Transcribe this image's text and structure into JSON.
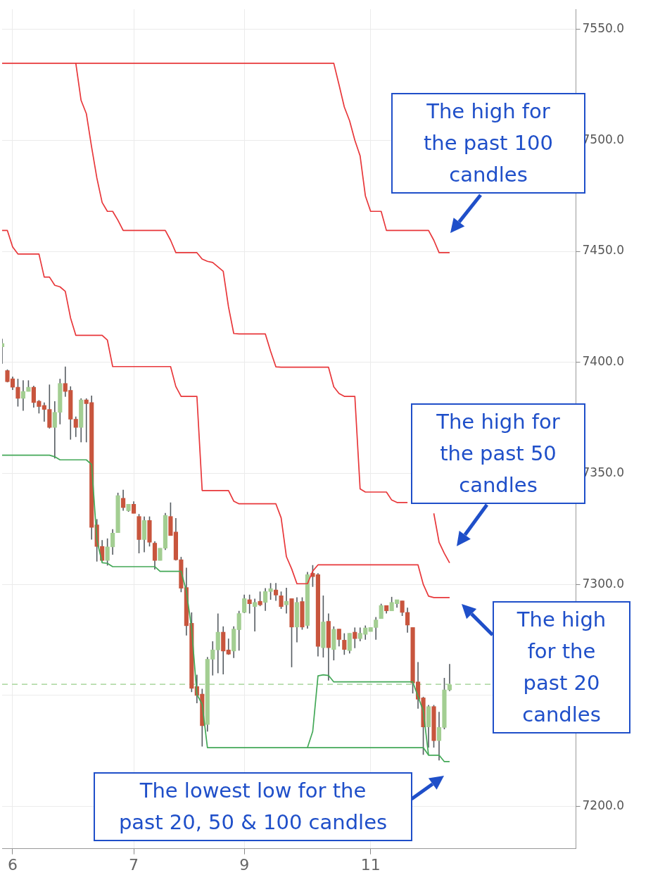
{
  "chart_data": {
    "type": "candlestick",
    "categories": [
      null,
      null,
      "6",
      null,
      null,
      null,
      null,
      null,
      null,
      null,
      null,
      null,
      null,
      null,
      null,
      null,
      null,
      null,
      null,
      null,
      null,
      null,
      null,
      null,
      null,
      "7",
      null,
      null,
      null,
      null,
      null,
      null,
      null,
      null,
      null,
      null,
      null,
      null,
      null,
      null,
      null,
      null,
      null,
      null,
      null,
      null,
      "9",
      null,
      null,
      null,
      null,
      null,
      null,
      null,
      null,
      null,
      null,
      null,
      null,
      null,
      null,
      null,
      null,
      null,
      null,
      null,
      null,
      null,
      null,
      null,
      "11",
      null,
      null,
      null,
      null,
      null,
      null,
      null,
      null,
      null,
      null,
      null,
      null,
      null,
      null,
      null,
      null,
      null,
      null,
      null,
      null,
      null,
      null,
      null,
      null,
      null,
      null,
      null,
      null,
      null,
      null,
      null,
      null,
      null,
      null,
      null,
      null,
      null,
      null,
      null
    ],
    "ohlc": [
      [
        7407.0,
        7410.6,
        7399.4,
        7408.5
      ],
      [
        7396.3,
        7396.8,
        7391.0,
        7391.3
      ],
      [
        7392.6,
        7393.6,
        7387.6,
        7388.8
      ],
      [
        7388.8,
        7392.6,
        7380.1,
        7383.8
      ],
      [
        7383.8,
        7391.9,
        7378.2,
        7386.9
      ],
      [
        7386.9,
        7391.9,
        7386.9,
        7388.8
      ],
      [
        7388.8,
        7389.5,
        7379.6,
        7381.9
      ],
      [
        7382.5,
        7383.0,
        7377.0,
        7380.1
      ],
      [
        7380.6,
        7381.9,
        7373.3,
        7378.8
      ],
      [
        7378.8,
        7390.0,
        7370.2,
        7370.7
      ],
      [
        7370.7,
        7382.5,
        7356.7,
        7377.5
      ],
      [
        7377.5,
        7392.6,
        7372.1,
        7390.5
      ],
      [
        7390.5,
        7398.1,
        7384.5,
        7386.9
      ],
      [
        7387.4,
        7389.2,
        7365.2,
        7374.4
      ],
      [
        7374.4,
        7375.6,
        7366.4,
        7370.7
      ],
      [
        7370.7,
        7383.8,
        7364.0,
        7383.1
      ],
      [
        7383.1,
        7383.8,
        7364.0,
        7381.4
      ],
      [
        7381.9,
        7385.0,
        7320.2,
        7325.7
      ],
      [
        7326.8,
        7329.4,
        7310.3,
        7317.1
      ],
      [
        7317.1,
        7320.0,
        7310.3,
        7310.8
      ],
      [
        7310.8,
        7320.7,
        7308.5,
        7316.9
      ],
      [
        7316.9,
        7324.9,
        7313.4,
        7323.1
      ],
      [
        7323.3,
        7341.3,
        7323.3,
        7340.0
      ],
      [
        7338.8,
        7342.6,
        7333.2,
        7334.6
      ],
      [
        7333.2,
        7336.1,
        7332.7,
        7336.1
      ],
      [
        7336.1,
        7337.4,
        7332.0,
        7332.0
      ],
      [
        7330.6,
        7331.7,
        7314.0,
        7320.2
      ],
      [
        7320.2,
        7330.6,
        7314.5,
        7328.8
      ],
      [
        7328.8,
        7330.6,
        7317.1,
        7319.0
      ],
      [
        7318.6,
        7319.4,
        7306.7,
        7310.8
      ],
      [
        7310.8,
        7316.3,
        7310.8,
        7316.3
      ],
      [
        7316.3,
        7332.2,
        7315.5,
        7331.1
      ],
      [
        7330.6,
        7336.9,
        7322.0,
        7322.0
      ],
      [
        7323.6,
        7329.9,
        7310.8,
        7311.1
      ],
      [
        7311.1,
        7312.4,
        7296.5,
        7298.3
      ],
      [
        7298.6,
        7307.5,
        7277.0,
        7281.4
      ],
      [
        7282.5,
        7287.4,
        7251.5,
        7253.2
      ],
      [
        7254.0,
        7259.3,
        7246.5,
        7250.0
      ],
      [
        7250.6,
        7253.0,
        7227.0,
        7236.4
      ],
      [
        7236.9,
        7267.3,
        7233.7,
        7266.3
      ],
      [
        7266.3,
        7274.4,
        7259.0,
        7270.5
      ],
      [
        7270.5,
        7286.9,
        7260.0,
        7278.5
      ],
      [
        7278.5,
        7281.1,
        7259.5,
        7270.0
      ],
      [
        7270.5,
        7275.6,
        7268.3,
        7268.6
      ],
      [
        7270.0,
        7281.1,
        7266.9,
        7279.9
      ],
      [
        7279.6,
        7288.1,
        7270.2,
        7286.9
      ],
      [
        7287.4,
        7295.4,
        7287.1,
        7293.6
      ],
      [
        7293.1,
        7295.4,
        7286.9,
        7291.3
      ],
      [
        7290.0,
        7293.6,
        7278.8,
        7291.9
      ],
      [
        7292.4,
        7296.8,
        7290.2,
        7290.8
      ],
      [
        7291.9,
        7298.3,
        7288.1,
        7296.8
      ],
      [
        7296.8,
        7300.6,
        7293.1,
        7298.1
      ],
      [
        7297.5,
        7300.6,
        7292.6,
        7295.2
      ],
      [
        7294.9,
        7296.8,
        7289.0,
        7290.0
      ],
      [
        7290.8,
        7298.5,
        7286.9,
        7292.4
      ],
      [
        7293.6,
        7293.6,
        7262.7,
        7280.8
      ],
      [
        7280.8,
        7294.2,
        7273.9,
        7291.9
      ],
      [
        7292.3,
        7294.2,
        7279.6,
        7280.8
      ],
      [
        7281.5,
        7305.6,
        7280.1,
        7304.4
      ],
      [
        7305.0,
        7308.7,
        7298.9,
        7303.5
      ],
      [
        7304.4,
        7305.1,
        7267.6,
        7272.1
      ],
      [
        7271.5,
        7295.0,
        7267.1,
        7283.1
      ],
      [
        7283.4,
        7286.9,
        7256.7,
        7271.5
      ],
      [
        7270.7,
        7281.1,
        7265.8,
        7279.8
      ],
      [
        7279.9,
        7279.9,
        7272.1,
        7275.2
      ],
      [
        7274.9,
        7278.0,
        7268.3,
        7270.7
      ],
      [
        7270.2,
        7278.0,
        7268.9,
        7278.0
      ],
      [
        7278.5,
        7280.6,
        7271.3,
        7275.6
      ],
      [
        7275.6,
        7280.6,
        7274.4,
        7278.0
      ],
      [
        7277.5,
        7281.5,
        7275.1,
        7280.4
      ],
      [
        7278.8,
        7280.6,
        7278.8,
        7280.6
      ],
      [
        7280.6,
        7285.3,
        7275.1,
        7284.0
      ],
      [
        7284.6,
        7291.3,
        7284.6,
        7290.5
      ],
      [
        7290.5,
        7290.5,
        7286.9,
        7288.1
      ],
      [
        7288.1,
        7294.4,
        7288.1,
        7291.9
      ],
      [
        7291.3,
        7293.1,
        7289.5,
        7293.1
      ],
      [
        7292.6,
        7292.6,
        7285.8,
        7287.4
      ],
      [
        7287.4,
        7289.5,
        7278.3,
        7281.7
      ],
      [
        7280.6,
        7280.6,
        7250.9,
        7255.6
      ],
      [
        7256.1,
        7265.0,
        7244.0,
        7248.3
      ],
      [
        7248.9,
        7249.4,
        7223.3,
        7235.8
      ],
      [
        7235.8,
        7245.7,
        7226.5,
        7245.0
      ],
      [
        7245.0,
        7245.7,
        7226.5,
        7229.6
      ],
      [
        7229.6,
        7242.6,
        7220.7,
        7235.6
      ],
      [
        7235.6,
        7257.9,
        7234.8,
        7252.5
      ],
      [
        7252.5,
        7264.2,
        7252.0,
        7254.8
      ],
      null,
      null,
      null,
      null,
      null,
      null,
      null,
      null,
      null,
      null,
      null,
      null,
      null,
      null,
      null,
      null,
      null,
      null,
      null,
      null,
      null,
      null,
      null,
      null
    ],
    "colors": [
      "#a3ce92",
      "#c8553d",
      "#c8553d",
      "#c8553d",
      "#a3ce92",
      "#a3ce92",
      "#c8553d",
      "#c8553d",
      "#c8553d",
      "#c8553d",
      "#a3ce92",
      "#a3ce92",
      "#c8553d",
      "#c8553d",
      "#c8553d",
      "#a3ce92",
      "#c8553d",
      "#c8553d",
      "#c8553d",
      "#c8553d",
      "#a3ce92",
      "#a3ce92",
      "#a3ce92",
      "#c8553d",
      "#a3ce92",
      "#c8553d",
      "#c8553d",
      "#a3ce92",
      "#c8553d",
      "#c8553d",
      "#a3ce92",
      "#a3ce92",
      "#c8553d",
      "#c8553d",
      "#c8553d",
      "#c8553d",
      "#c8553d",
      "#c8553d",
      "#c8553d",
      "#a3ce92",
      "#a3ce92",
      "#a3ce92",
      "#c8553d",
      "#c8553d",
      "#a3ce92",
      "#a3ce92",
      "#a3ce92",
      "#c8553d",
      "#a3ce92",
      "#c8553d",
      "#a3ce92",
      "#a3ce92",
      "#c8553d",
      "#c8553d",
      "#a3ce92",
      "#c8553d",
      "#a3ce92",
      "#c8553d",
      "#a3ce92",
      "#c8553d",
      "#c8553d",
      "#a3ce92",
      "#c8553d",
      "#a3ce92",
      "#c8553d",
      "#c8553d",
      "#a3ce92",
      "#c8553d",
      "#a3ce92",
      "#a3ce92",
      "#a3ce92",
      "#a3ce92",
      "#a3ce92",
      "#c8553d",
      "#a3ce92",
      "#a3ce92",
      "#c8553d",
      "#c8553d",
      "#c8553d",
      "#c8553d",
      "#c8553d",
      "#a3ce92",
      "#c8553d",
      "#a3ce92",
      "#a3ce92",
      "#a3ce92",
      null,
      null,
      null,
      null,
      null,
      null,
      null,
      null,
      null,
      null,
      null,
      null,
      null,
      null,
      null,
      null,
      null,
      null,
      null,
      null,
      null,
      null,
      null,
      null
    ],
    "series": [
      {
        "type": "line",
        "color": "#e8373a",
        "values": [
          7534.7,
          7534.7,
          7534.7,
          7534.7,
          7534.7,
          7534.7,
          7534.7,
          7534.7,
          7534.7,
          7534.7,
          7534.7,
          7534.7,
          7534.7,
          7534.7,
          7534.7,
          7534.7,
          7534.7,
          7534.7,
          7534.7,
          7534.7,
          7534.7,
          7534.7,
          7534.7,
          7534.7,
          7534.7,
          7534.7,
          7534.7,
          7534.7,
          7534.7,
          7534.7,
          7534.7,
          7534.7,
          7534.7,
          7534.7,
          7534.7,
          7534.7,
          7534.7,
          7534.7,
          7534.7,
          7534.7,
          7534.7,
          7534.7,
          7534.7,
          7534.7,
          7534.7,
          7534.7,
          7534.7,
          7534.7,
          7534.7,
          7534.7,
          7534.7,
          7534.7,
          7534.7,
          7534.7,
          7534.7,
          7534.7,
          7534.7,
          7534.7,
          7534.7,
          7534.7,
          7534.7,
          7534.7,
          7534.7,
          7534.7,
          7525,
          7515,
          7508.8,
          7500,
          7493,
          7475,
          7468,
          7468,
          7468,
          7459.4,
          7459.4,
          7459.4,
          7459.4,
          7459.4,
          7459.4,
          7459.4,
          7459.4,
          7459.4,
          7455,
          7449.4,
          7449.4,
          7449.4,
          null,
          null,
          null,
          null,
          null,
          null,
          null,
          null,
          null,
          null,
          null,
          null,
          null,
          null,
          null,
          null,
          null,
          null,
          null,
          null,
          null,
          null,
          null,
          null
        ]
      },
      {
        "type": "line",
        "color": "#e8373a",
        "values": [
          null,
          null,
          null,
          null,
          null,
          null,
          null,
          null,
          null,
          null,
          null,
          null,
          null,
          null,
          7534.7,
          7518,
          7512,
          7497,
          7483,
          7472,
          7468,
          7468,
          7464,
          7459.4,
          7459.4,
          7459.4,
          7459.4,
          7459.4,
          7459.4,
          7459.4,
          7459.4,
          7459.4,
          7455,
          7449.4,
          7449.4,
          7449.4,
          7449.4,
          7449.4,
          7446.5,
          7445.5,
          7445,
          7443,
          7441,
          7425,
          7413,
          7412.8,
          7412.8,
          7412.8,
          7412.8,
          7412.8,
          7412.8,
          7405,
          7398,
          7397.8,
          7397.8,
          7397.8,
          7397.8,
          7397.8,
          7397.8,
          7397.8,
          7397.8,
          7397.8,
          7397.8,
          7389,
          7386,
          7384.7,
          7384.7,
          7384.7,
          7343,
          7341.6,
          7341.6,
          7341.6,
          7341.6,
          7341.6,
          7338,
          7336.9,
          7336.9,
          7336.9,
          null,
          null,
          null,
          null,
          7332,
          7319,
          7314,
          7309.7,
          null,
          null,
          null,
          null,
          null,
          null,
          null,
          null,
          null,
          null,
          null,
          null,
          null,
          null,
          null,
          null,
          null,
          null,
          null,
          null,
          null,
          null,
          null,
          null
        ]
      },
      {
        "type": "line",
        "color": "#e8373a",
        "values": [
          7459.4,
          7459.4,
          7452,
          7448.8,
          7448.8,
          7448.8,
          7448.8,
          7448.8,
          7438.4,
          7438.4,
          7434.7,
          7434,
          7432,
          7420,
          7412.2,
          7412.2,
          7412.2,
          7412.2,
          7412.2,
          7412.2,
          7410,
          7398.1,
          7398.1,
          7398.1,
          7398.1,
          7398.1,
          7398.1,
          7398.1,
          7398.1,
          7398.1,
          7398.1,
          7398.1,
          7398.1,
          7389.1,
          7384.7,
          7384.7,
          7384.7,
          7384.7,
          7342.3,
          7342.3,
          7342.3,
          7342.3,
          7342.3,
          7342.3,
          7337.5,
          7336.3,
          7336.3,
          7336.3,
          7336.3,
          7336.3,
          7336.3,
          7336.3,
          7336.3,
          7330,
          7312.5,
          7307,
          7300.3,
          7300.3,
          7300.3,
          7306,
          7308.8,
          7308.8,
          7308.8,
          7308.8,
          7308.8,
          7308.8,
          7308.8,
          7308.8,
          7308.8,
          7308.8,
          7308.8,
          7308.8,
          7308.8,
          7308.8,
          7308.8,
          7308.8,
          7308.8,
          7308.8,
          7308.8,
          7308.8,
          7300,
          7294.7,
          7294.1,
          7294.1,
          7294.1,
          7294.1,
          null,
          null,
          null,
          null,
          null,
          null,
          null,
          null,
          null,
          null,
          null,
          null,
          null,
          null,
          null,
          null,
          null,
          null,
          null,
          null,
          null,
          null,
          null,
          null
        ]
      },
      {
        "type": "line",
        "color": "#43a857",
        "values": [
          7358.2,
          7358.2,
          7358.2,
          7358.2,
          7358.2,
          7358.2,
          7358.2,
          7358.2,
          7358.2,
          7358.2,
          7357.5,
          7356.1,
          7356.1,
          7356.1,
          7356.1,
          7356.1,
          7356.1,
          7354,
          7320,
          7309.8,
          7309.5,
          7308,
          7308,
          7308,
          7308,
          7308,
          7308,
          7308,
          7308,
          7308,
          7305.9,
          7305.9,
          7305.9,
          7305.9,
          7305.9,
          7297,
          7280,
          7250.5,
          7246,
          7226.5,
          7226.5,
          7226.5,
          7226.5,
          7226.5,
          7226.5,
          7226.5,
          7226.5,
          7226.5,
          7226.5,
          7226.5,
          7226.5,
          7226.5,
          7226.5,
          7226.5,
          7226.5,
          7226.5,
          7226.5,
          7226.5,
          7226.5,
          7233.8,
          7258.8,
          7259.3,
          7259,
          7256.1,
          7256.1,
          7256.1,
          7256.1,
          7256.1,
          7256.1,
          7256.1,
          7256.1,
          7256.1,
          7256.1,
          7256.1,
          7256.1,
          7256.1,
          7256.1,
          7256.1,
          7256.1,
          7249.5,
          7243,
          7223.1,
          7223.1,
          7223.1,
          7220.2,
          7220.2,
          null,
          null,
          null,
          null,
          null,
          null,
          null,
          null,
          null,
          null,
          null,
          null,
          null,
          null,
          null,
          null,
          null,
          null,
          null,
          null,
          null,
          null,
          null,
          null
        ]
      },
      {
        "type": "line",
        "color": "#43a857",
        "values": [
          null,
          null,
          null,
          null,
          null,
          null,
          null,
          null,
          null,
          null,
          null,
          null,
          null,
          null,
          null,
          null,
          null,
          null,
          null,
          null,
          null,
          null,
          null,
          null,
          null,
          null,
          null,
          null,
          null,
          null,
          null,
          null,
          null,
          null,
          null,
          null,
          null,
          null,
          null,
          null,
          null,
          null,
          null,
          null,
          null,
          null,
          null,
          null,
          null,
          null,
          null,
          null,
          null,
          null,
          null,
          null,
          null,
          null,
          7226.5,
          7226.5,
          7226.5,
          7226.5,
          7226.5,
          7226.5,
          7226.5,
          7226.5,
          7226.5,
          7226.5,
          7226.5,
          7226.5,
          7226.5,
          7226.5,
          7226.5,
          7226.5,
          7226.5,
          7226.5,
          7226.5,
          7226.5,
          7226.5,
          7226.5,
          7226.5,
          7223.1,
          null,
          null,
          null,
          null,
          null,
          null,
          null,
          null,
          null,
          null,
          null,
          null,
          null,
          null,
          null,
          null,
          null,
          null,
          null,
          null,
          null,
          null,
          null,
          null,
          null,
          null,
          null,
          null
        ]
      }
    ],
    "ylim": [
      7181,
      7559
    ],
    "yticks": [
      {
        "value": 7200,
        "label": "7200.0"
      },
      {
        "value": 7250,
        "label": null
      },
      {
        "value": 7300,
        "label": "7300.0"
      },
      {
        "value": 7350,
        "label": "7350.0"
      },
      {
        "value": 7400,
        "label": "7400.0"
      },
      {
        "value": 7450,
        "label": "7450.0"
      },
      {
        "value": 7500,
        "label": "7500.0"
      },
      {
        "value": 7550,
        "label": "7550.0"
      }
    ],
    "ref_lines": [
      {
        "axis": "y",
        "value": 7255,
        "color": "#b5dcaa",
        "line_style": "dashed"
      }
    ],
    "grid": true,
    "annotations": [
      "The high for the past 100 candles",
      "The high for the past 50 candles",
      "The high for the past 20 candles",
      "The lowest low for the past 20, 50 & 100 candles"
    ]
  }
}
